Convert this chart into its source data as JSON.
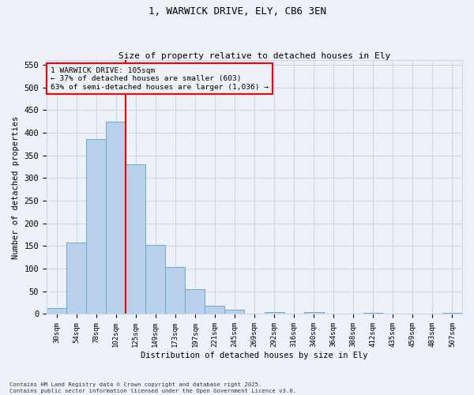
{
  "title1": "1, WARWICK DRIVE, ELY, CB6 3EN",
  "title2": "Size of property relative to detached houses in Ely",
  "xlabel": "Distribution of detached houses by size in Ely",
  "ylabel": "Number of detached properties",
  "bar_labels": [
    "30sqm",
    "54sqm",
    "78sqm",
    "102sqm",
    "125sqm",
    "149sqm",
    "173sqm",
    "197sqm",
    "221sqm",
    "245sqm",
    "269sqm",
    "292sqm",
    "316sqm",
    "340sqm",
    "364sqm",
    "388sqm",
    "412sqm",
    "435sqm",
    "459sqm",
    "483sqm",
    "507sqm"
  ],
  "bar_values": [
    13,
    157,
    387,
    425,
    330,
    153,
    103,
    55,
    18,
    10,
    0,
    5,
    0,
    5,
    0,
    0,
    3,
    0,
    0,
    0,
    3
  ],
  "bar_color": "#b8d0ea",
  "bar_edge_color": "#6aaad4",
  "grid_color": "#c8d8ee",
  "background_color": "#eef2f8",
  "vline_color": "red",
  "annotation_text": "1 WARWICK DRIVE: 105sqm\n← 37% of detached houses are smaller (603)\n63% of semi-detached houses are larger (1,036) →",
  "annotation_box_color": "red",
  "ylim": [
    0,
    560
  ],
  "yticks": [
    0,
    50,
    100,
    150,
    200,
    250,
    300,
    350,
    400,
    450,
    500,
    550
  ],
  "footer": "Contains HM Land Registry data © Crown copyright and database right 2025.\nContains public sector information licensed under the Open Government Licence v3.0."
}
